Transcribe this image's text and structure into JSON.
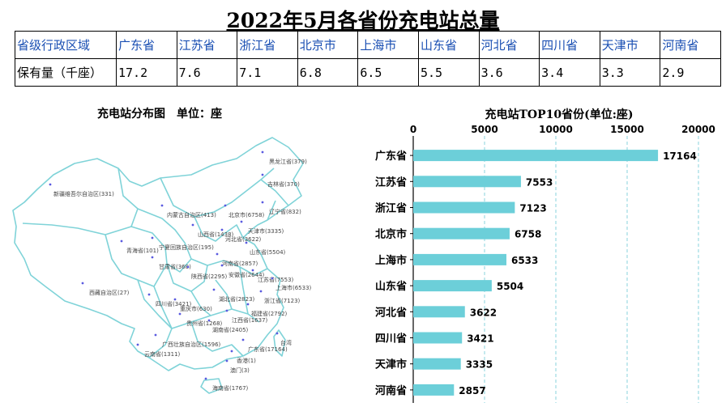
{
  "page_title": "2022年5月各省份充电站总量",
  "summary_table": {
    "header_label": "省级行政区域",
    "value_label": "保有量（千座）",
    "provinces": [
      "广东省",
      "江苏省",
      "浙江省",
      "北京市",
      "上海市",
      "山东省",
      "河北省",
      "四川省",
      "天津市",
      "河南省"
    ],
    "values": [
      "17.2",
      "7.6",
      "7.1",
      "6.8",
      "6.5",
      "5.5",
      "3.6",
      "3.4",
      "3.3",
      "2.9"
    ]
  },
  "map_panel": {
    "title": "充电站分布图",
    "unit": "单位：座",
    "labels": [
      {
        "text": "黑龙江省(379)"
      },
      {
        "text": "吉林省(370)"
      },
      {
        "text": "新疆维吾尔自治区(331)"
      },
      {
        "text": "辽宁省(832)"
      },
      {
        "text": "内蒙古自治区(413)"
      },
      {
        "text": "北京市(6758)"
      },
      {
        "text": "天津市(3335)"
      },
      {
        "text": "山西省(1438)"
      },
      {
        "text": "河北省(3622)"
      },
      {
        "text": "宁夏回族自治区(195)"
      },
      {
        "text": "青海省(101)"
      },
      {
        "text": "山东省(5504)"
      },
      {
        "text": "甘肃省(368)"
      },
      {
        "text": "河南省(2857)"
      },
      {
        "text": "陕西省(2295)"
      },
      {
        "text": "安徽省(2644)"
      },
      {
        "text": "江苏省(7553)"
      },
      {
        "text": "上海市(6533)"
      },
      {
        "text": "西藏自治区(27)"
      },
      {
        "text": "湖北省(2823)"
      },
      {
        "text": "浙江省(7123)"
      },
      {
        "text": "四川省(3421)"
      },
      {
        "text": "重庆市(630)"
      },
      {
        "text": "福建省(2792)"
      },
      {
        "text": "贵州省(1268)"
      },
      {
        "text": "江西省(1637)"
      },
      {
        "text": "湖南省(2405)"
      },
      {
        "text": "广西壮族自治区(1596)"
      },
      {
        "text": "广东省(17164)"
      },
      {
        "text": "台湾"
      },
      {
        "text": "云南省(1311)"
      },
      {
        "text": "香港(1)"
      },
      {
        "text": "澳门(3)"
      },
      {
        "text": "海南省(1767)"
      }
    ]
  },
  "colors": {
    "bar": "#6ccfd9",
    "map_stroke": "#7fd3d8",
    "grid": "#8ad3dc",
    "dot": "#5a5ae0",
    "table_header_text": "#1a4fb3"
  },
  "chart_data": {
    "type": "bar",
    "orientation": "horizontal",
    "title": "充电站TOP10省份(单位:座)",
    "categories": [
      "广东省",
      "江苏省",
      "浙江省",
      "北京市",
      "上海市",
      "山东省",
      "河北省",
      "四川省",
      "天津市",
      "河南省"
    ],
    "values": [
      17164,
      7553,
      7123,
      6758,
      6533,
      5504,
      3622,
      3421,
      3335,
      2857
    ],
    "xlim": [
      0,
      20000
    ],
    "xticks": [
      0,
      5000,
      10000,
      15000,
      20000
    ],
    "axis_position": "top",
    "grid": true,
    "grid_style": "dashed-vertical",
    "data_labels": true
  }
}
